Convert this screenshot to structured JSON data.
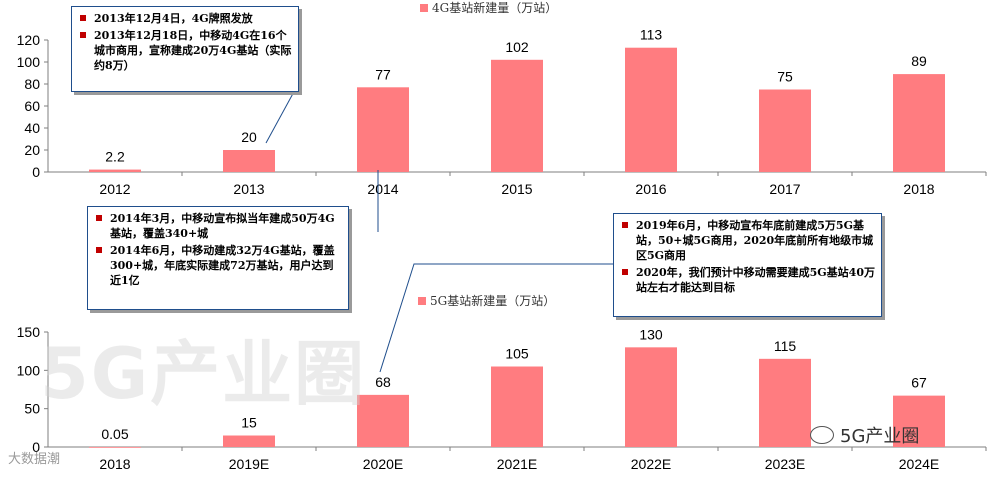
{
  "chart_data": [
    {
      "type": "bar",
      "legend": "4G基站新建量（万站）",
      "categories": [
        "2012",
        "2013",
        "2014",
        "2015",
        "2016",
        "2017",
        "2018"
      ],
      "values": [
        2.2,
        20,
        77,
        102,
        113,
        75,
        89
      ],
      "value_labels": [
        "2.2",
        "20",
        "77",
        "102",
        "113",
        "75",
        "89"
      ],
      "yticks": [
        "0",
        "20",
        "40",
        "60",
        "80",
        "100",
        "120"
      ],
      "ylim": [
        0,
        120
      ],
      "color": "#ff7c80"
    },
    {
      "type": "bar",
      "legend": "5G基站新建量（万站）",
      "categories": [
        "2018",
        "2019E",
        "2020E",
        "2021E",
        "2022E",
        "2023E",
        "2024E"
      ],
      "values": [
        0.05,
        15,
        68,
        105,
        130,
        115,
        67
      ],
      "value_labels": [
        "0.05",
        "15",
        "68",
        "105",
        "130",
        "115",
        "67"
      ],
      "yticks": [
        "0",
        "50",
        "100",
        "150"
      ],
      "ylim": [
        0,
        150
      ],
      "color": "#ff7c80"
    }
  ],
  "callouts": {
    "box1": [
      "2013年12月4日，4G牌照发放",
      "2013年12月18日，中移动4G在16个城市商用，宣称建成20万4G基站（实际约8万）"
    ],
    "box2": [
      "2014年3月，中移动宣布拟当年建成50万4G基站，覆盖340+城",
      "2014年6月，中移动建成32万4G基站，覆盖300+城，年底实际建成72万基站，用户达到近1亿"
    ],
    "box3": [
      "2019年6月，中移动宣布年底前建成5万5G基站，50+城5G商用，2020年底前所有地级市城区5G商用",
      "2020年，我们预计中移动需要建成5G基站40万站左右才能达到目标"
    ]
  },
  "watermark": "5G产业圈",
  "watermark_small": "大数据潮",
  "brand": "5G产业圈",
  "accent_color": "#ff7c80",
  "border_color": "#1f4e8c",
  "bullet_color": "#c00000"
}
